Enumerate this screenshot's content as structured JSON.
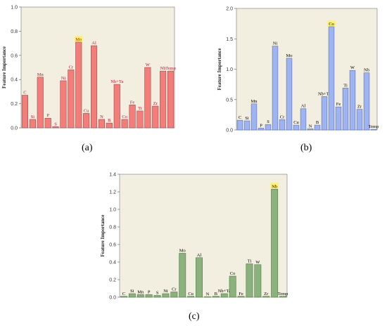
{
  "colors": {
    "plot_bg": "#f2efe1",
    "hl": "#fff36b",
    "a_bar": "#f47d7a",
    "a_edge": "#a14645",
    "a_label": "#c8102e",
    "b_bar": "#9db3f2",
    "b_edge": "#5a6fb0",
    "b_label": "#000000",
    "c_bar": "#8bb27c",
    "c_edge": "#4e7a44",
    "c_label": "#000000"
  },
  "captions": {
    "a": "(a)",
    "b": "(b)",
    "c": "(c)"
  },
  "chart_data": [
    {
      "type": "bar",
      "panel": "a",
      "ylabel": "Feature Importance",
      "ylim": [
        0,
        1.0
      ],
      "yticks": [
        "0.0",
        "0.2",
        "0.4",
        "0.6",
        "0.8",
        "1.0"
      ],
      "ytick_values": [
        0,
        0.2,
        0.4,
        0.6,
        0.8,
        1.0
      ],
      "grid": false,
      "categories": [
        "C",
        "Si",
        "Mn",
        "P",
        "S",
        "Ni",
        "Cr",
        "Mo",
        "Cu",
        "Al",
        "N",
        "B",
        "Nb+Ta",
        "Co",
        "Fe",
        "Ti",
        "W",
        "Zr",
        "Nb",
        "Temp"
      ],
      "values": [
        0.27,
        0.07,
        0.42,
        0.08,
        0.01,
        0.39,
        0.48,
        0.71,
        0.12,
        0.68,
        0.07,
        0.04,
        0.36,
        0.07,
        0.19,
        0.14,
        0.5,
        0.18,
        0.47,
        0.47
      ],
      "highlight": "Mo"
    },
    {
      "type": "bar",
      "panel": "b",
      "ylabel": "Feature Importance",
      "ylim": [
        0,
        2.0
      ],
      "yticks": [
        "0.0",
        "0.5",
        "1.0",
        "1.5",
        "2.0"
      ],
      "ytick_values": [
        0,
        0.5,
        1.0,
        1.5,
        2.0
      ],
      "grid": false,
      "categories": [
        "C",
        "Si",
        "Mn",
        "P",
        "S",
        "Ni",
        "Cr",
        "Mo",
        "Cu",
        "Al",
        "N",
        "B",
        "Nb+Ta",
        "Co",
        "Fe",
        "Ti",
        "W",
        "Zr",
        "Nb",
        "Temp"
      ],
      "values": [
        0.16,
        0.15,
        0.43,
        0.03,
        0.09,
        1.38,
        0.17,
        1.18,
        0.08,
        0.35,
        0.02,
        0.08,
        0.55,
        1.7,
        0.38,
        0.69,
        0.98,
        0.34,
        0.94,
        0.01
      ],
      "highlight": "Co"
    },
    {
      "type": "bar",
      "panel": "c",
      "ylabel": "Feature Importance",
      "ylim": [
        0,
        1.4
      ],
      "yticks": [
        "0.0",
        "0.2",
        "0.4",
        "0.6",
        "0.8",
        "1.0",
        "1.2",
        "1.4"
      ],
      "ytick_values": [
        0,
        0.2,
        0.4,
        0.6,
        0.8,
        1.0,
        1.2,
        1.4
      ],
      "grid": false,
      "categories": [
        "C",
        "Si",
        "Mn",
        "P",
        "S",
        "Ni",
        "Cr",
        "Mo",
        "Cu",
        "Al",
        "N",
        "B",
        "Nb+Ta",
        "Co",
        "Fe",
        "Ti",
        "W",
        "Zr",
        "Nb",
        "Temp"
      ],
      "values": [
        0.01,
        0.04,
        0.03,
        0.03,
        0.02,
        0.04,
        0.06,
        0.5,
        0.01,
        0.45,
        0.0,
        0.01,
        0.04,
        0.24,
        0.01,
        0.38,
        0.37,
        0.01,
        1.23,
        0.01
      ],
      "highlight": "Nb"
    }
  ]
}
